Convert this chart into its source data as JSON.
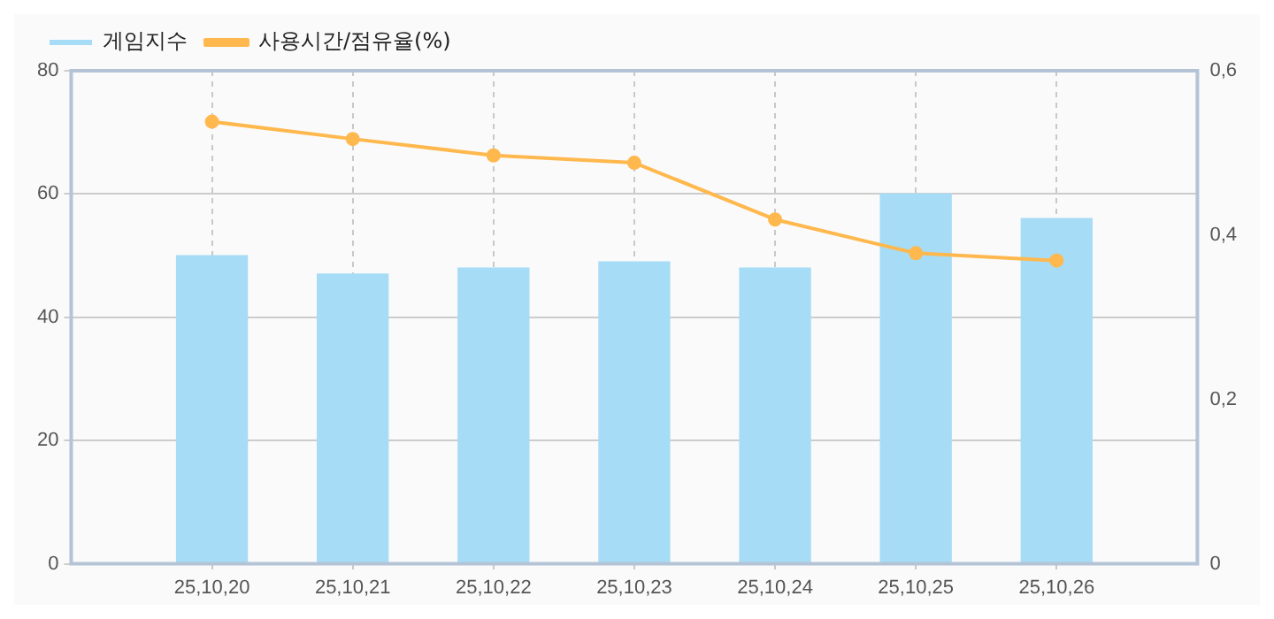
{
  "chart_data": {
    "type": "bar",
    "categories": [
      "25,10,20",
      "25,10,21",
      "25,10,22",
      "25,10,23",
      "25,10,24",
      "25,10,25",
      "25,10,26"
    ],
    "series": [
      {
        "name": "게임지수",
        "color": "#a6dcf5",
        "values": [
          50,
          47,
          48,
          49,
          48,
          60,
          56
        ]
      },
      {
        "name": "사용시간/점유율(%)",
        "type": "line",
        "axis": "y2",
        "color": "#ffb84d",
        "values": [
          0.538,
          0.517,
          0.497,
          0.488,
          0.419,
          0.378,
          0.369
        ]
      }
    ],
    "ylim": [
      0,
      80
    ],
    "yticks": [
      0,
      20,
      40,
      60,
      80
    ],
    "y2lim": [
      0,
      0.6
    ],
    "y2ticks": [
      0,
      {
        "value": 0.2,
        "label": "0,2"
      },
      {
        "value": 0.4,
        "label": "0,4"
      },
      {
        "value": 0.6,
        "label": "0,6"
      }
    ],
    "grid": true,
    "legend": "top left",
    "marker": "circle"
  }
}
